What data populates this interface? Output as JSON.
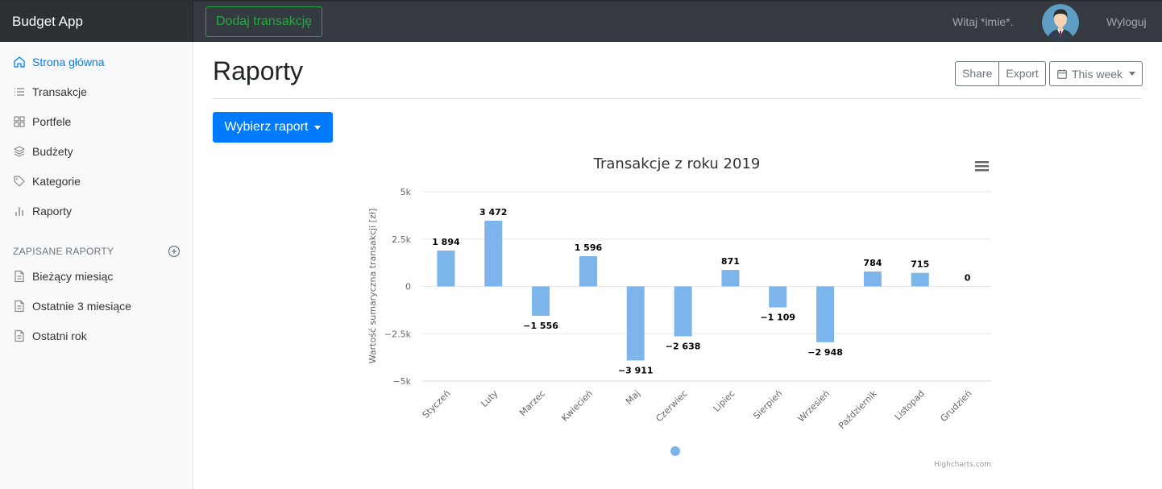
{
  "navbar": {
    "brand": "Budget App",
    "add_transaction": "Dodaj transakcję",
    "greeting": "Witaj *imie*.",
    "logout": "Wyloguj"
  },
  "sidebar": {
    "items": [
      {
        "label": "Strona główna",
        "icon": "home-icon",
        "active": true
      },
      {
        "label": "Transakcje",
        "icon": "list-icon",
        "active": false
      },
      {
        "label": "Portfele",
        "icon": "grid-icon",
        "active": false
      },
      {
        "label": "Budżety",
        "icon": "layers-icon",
        "active": false
      },
      {
        "label": "Kategorie",
        "icon": "tag-icon",
        "active": false
      },
      {
        "label": "Raporty",
        "icon": "bar-chart-icon",
        "active": false
      }
    ],
    "saved_heading": "ZAPISANE RAPORTY",
    "saved": [
      {
        "label": "Bieżący miesiąc",
        "icon": "file-icon"
      },
      {
        "label": "Ostatnie 3 miesiące",
        "icon": "file-icon"
      },
      {
        "label": "Ostatni rok",
        "icon": "file-icon"
      }
    ]
  },
  "main": {
    "title": "Raporty",
    "share": "Share",
    "export": "Export",
    "period": "This week",
    "choose_report": "Wybierz raport"
  },
  "colors": {
    "accent": "#007bff",
    "success": "#28a745",
    "bar": "#7cb5ec",
    "navbar": "#343a40"
  },
  "chart_data": {
    "type": "bar",
    "title": "Transakcje z roku 2019",
    "ylabel": "Wartość sumaryczna transakcji [zł]",
    "xlabel": "",
    "ylim": [
      -5000,
      5000
    ],
    "yticks": [
      5000,
      2500,
      0,
      -2500,
      -5000
    ],
    "ytick_labels": [
      "5k",
      "2.5k",
      "0",
      "−2.5k",
      "−5k"
    ],
    "categories": [
      "Styczeń",
      "Luty",
      "Marzec",
      "Kwiecień",
      "Maj",
      "Czerwiec",
      "Lipiec",
      "Sierpień",
      "Wrzesień",
      "Październik",
      "Listopad",
      "Grudzień"
    ],
    "values": [
      1894,
      3472,
      -1556,
      1596,
      -3911,
      -2638,
      871,
      -1109,
      -2948,
      784,
      715,
      0
    ],
    "value_labels": [
      "1 894",
      "3 472",
      "−1 556",
      "1 596",
      "−3 911",
      "−2 638",
      "871",
      "−1 109",
      "−2 948",
      "784",
      "715",
      "0"
    ],
    "credits": "Highcharts.com",
    "grid": true
  }
}
